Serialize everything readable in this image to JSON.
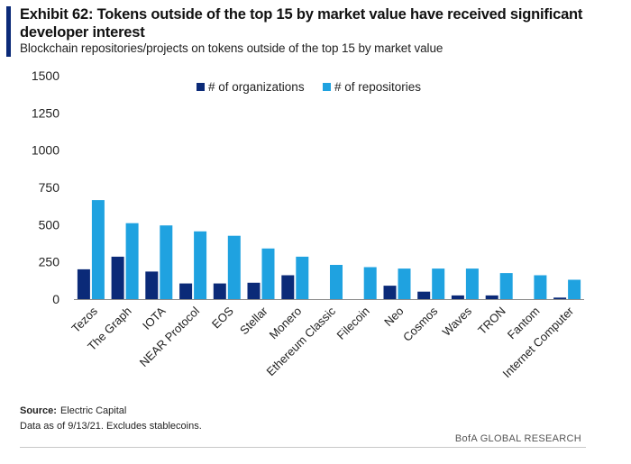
{
  "header": {
    "title": "Exhibit 62: Tokens outside of the top 15 by market value have received significant developer interest",
    "subtitle": "Blockchain repositories/projects on tokens outside of the top 15 by market value"
  },
  "footer": {
    "source_label": "Source:",
    "source_text": "Electric Capital",
    "note": "Data as of 9/13/21. Excludes stablecoins.",
    "brand": "BofA GLOBAL RESEARCH"
  },
  "colors": {
    "accent": "#0b2a78",
    "organizations": "#0b2a78",
    "repositories": "#1fa2e0"
  },
  "chart_data": {
    "type": "bar",
    "categories": [
      "Tezos",
      "The Graph",
      "IOTA",
      "NEAR Protocol",
      "EOS",
      "Stellar",
      "Monero",
      "Ethereum Classic",
      "Filecoin",
      "Neo",
      "Cosmos",
      "Waves",
      "TRON",
      "Fantom",
      "Internet Computer"
    ],
    "series": [
      {
        "name": "# of organizations",
        "values": [
          200,
          285,
          185,
          105,
          105,
          110,
          160,
          0,
          0,
          90,
          50,
          25,
          25,
          0,
          10
        ]
      },
      {
        "name": "# of repositories",
        "values": [
          665,
          510,
          495,
          455,
          425,
          340,
          285,
          230,
          215,
          205,
          205,
          205,
          175,
          160,
          130
        ]
      }
    ],
    "ylim": [
      0,
      1500
    ],
    "yticks": [
      "0",
      "250",
      "500",
      "750",
      "1000",
      "1250",
      "1500"
    ],
    "grid": false,
    "legend_position": "top-center"
  }
}
